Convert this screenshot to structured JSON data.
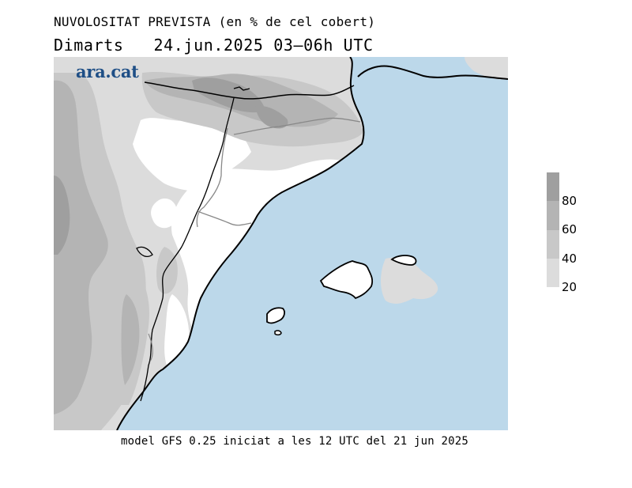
{
  "title": "NUVOLOSITAT PREVISTA (en % de cel cobert)",
  "forecast": {
    "day": "Dimarts",
    "datetime": "24.jun.2025 03–06h UTC"
  },
  "logo": "ara.cat",
  "legend": {
    "labels": [
      "80",
      "60",
      "40",
      "20"
    ],
    "colors": [
      "#9f9f9f",
      "#b4b4b4",
      "#c8c8c8",
      "#dcdcdc"
    ]
  },
  "footer": "model GFS 0.25 iniciat a les 12 UTC del 21 jun 2025",
  "colors": {
    "sea": "#bcd8ea",
    "clear_land": "#ffffff",
    "cloud_20": "#dcdcdc",
    "cloud_40": "#c8c8c8",
    "cloud_60": "#b4b4b4",
    "cloud_80": "#9f9f9f"
  }
}
